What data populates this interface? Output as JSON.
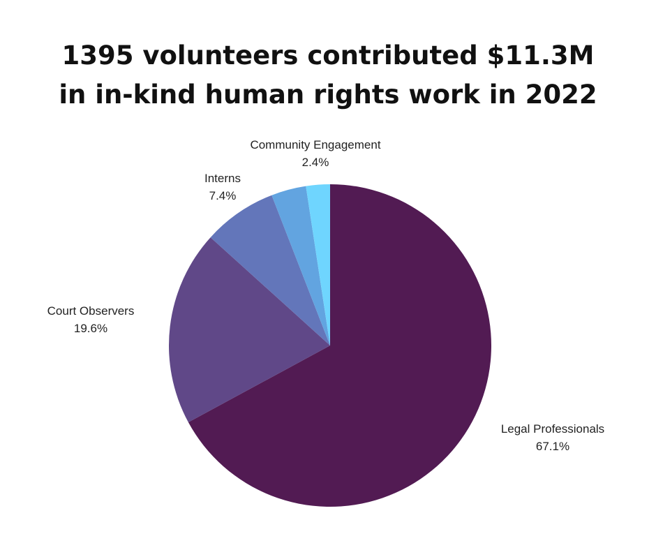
{
  "title_lines": [
    "1395 volunteers contributed $11.3M",
    "in in-kind human rights work in 2022"
  ],
  "chart_data": {
    "type": "pie",
    "title": "1395 volunteers contributed $11.3M in in-kind human rights work in 2022",
    "start": "12 o'clock",
    "direction": "clockwise",
    "slices": [
      {
        "label": "Legal Professionals",
        "value": 67.1,
        "value_label": "67.1%",
        "color": "#521b53"
      },
      {
        "label": "Court Observers",
        "value": 19.6,
        "value_label": "19.6%",
        "color": "#604888"
      },
      {
        "label": "Interns",
        "value": 7.4,
        "value_label": "7.4%",
        "color": "#6376ba"
      },
      {
        "label": "Community Engagement",
        "value": 3.5,
        "value_label": "",
        "color": "#62a4e0"
      },
      {
        "label": "Community Engagement",
        "value": 2.4,
        "value_label": "2.4%",
        "color": "#6fd5fe"
      }
    ]
  }
}
